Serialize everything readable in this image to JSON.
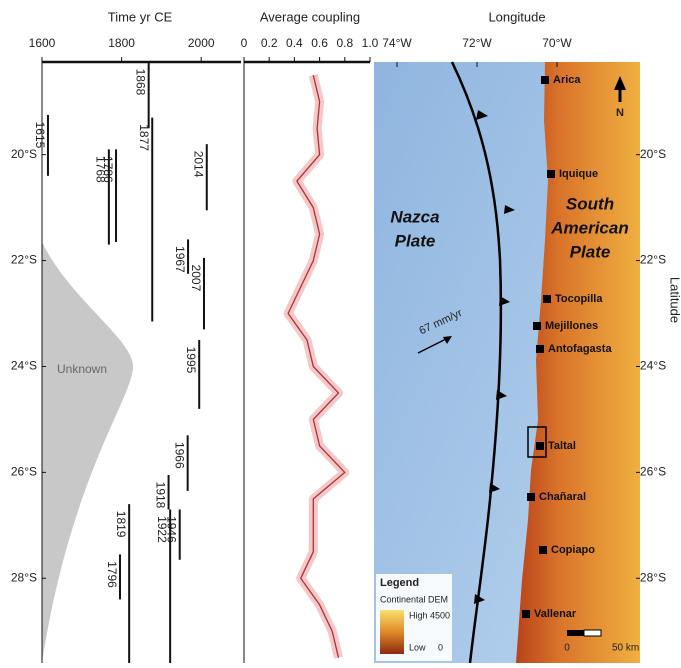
{
  "chart_data": [
    {
      "type": "range",
      "title": "Time yr CE",
      "xlim": [
        1600,
        2100
      ],
      "xticks": [
        1600,
        1800,
        2000
      ],
      "ylim": [
        18.25,
        29.6
      ],
      "yticks": [
        {
          "value": 20,
          "label": "20°S"
        },
        {
          "value": 22,
          "label": "22°S"
        },
        {
          "value": 24,
          "label": "24°S"
        },
        {
          "value": 26,
          "label": "26°S"
        },
        {
          "value": 28,
          "label": "28°S"
        }
      ],
      "annotation": "Unknown",
      "ruptures": [
        {
          "year": 1868,
          "lat": [
            18.25,
            19.5
          ]
        },
        {
          "year": 1615,
          "lat": [
            19.25,
            20.4
          ]
        },
        {
          "year": 1768,
          "lat": [
            19.9,
            21.7
          ]
        },
        {
          "year": 1786,
          "lat": [
            19.9,
            21.65
          ]
        },
        {
          "year": 1877,
          "lat": [
            19.3,
            23.15
          ]
        },
        {
          "year": 2014,
          "lat": [
            19.8,
            21.05
          ]
        },
        {
          "year": 1967,
          "lat": [
            21.6,
            22.25
          ]
        },
        {
          "year": 2007,
          "lat": [
            21.95,
            23.3
          ]
        },
        {
          "year": 1995,
          "lat": [
            23.5,
            24.8
          ]
        },
        {
          "year": 1966,
          "lat": [
            25.3,
            26.35
          ]
        },
        {
          "year": 1918,
          "lat": [
            26.05,
            26.7
          ]
        },
        {
          "year": 1946,
          "lat": [
            26.7,
            27.65
          ]
        },
        {
          "year": 1796,
          "lat": [
            27.55,
            28.4
          ]
        },
        {
          "year": 1819,
          "lat": [
            26.6,
            29.6
          ]
        },
        {
          "year": 1922,
          "lat": [
            26.7,
            29.6
          ]
        }
      ]
    },
    {
      "type": "line",
      "title": "Average coupling",
      "color": "#b03030",
      "xlim": [
        0,
        1
      ],
      "xticks": [
        0,
        0.2,
        0.4,
        0.6,
        0.8,
        {
          "value": 1,
          "label": "1.0"
        }
      ],
      "ylim": [
        18.25,
        29.6
      ],
      "latitude": [
        18.5,
        19,
        19.5,
        20,
        20.5,
        21,
        21.5,
        22,
        22.5,
        23,
        23.5,
        24,
        24.5,
        25,
        25.5,
        26,
        26.5,
        27,
        27.5,
        28,
        28.5,
        29,
        29.5
      ],
      "values": [
        0.55,
        0.6,
        0.58,
        0.6,
        0.42,
        0.55,
        0.6,
        0.55,
        0.45,
        0.35,
        0.5,
        0.55,
        0.75,
        0.55,
        0.6,
        0.8,
        0.55,
        0.55,
        0.55,
        0.45,
        0.6,
        0.7,
        0.75
      ]
    }
  ],
  "map": {
    "title": "Longitude",
    "ylabel": "Latitude",
    "xticks": [
      {
        "value": -74,
        "label": "74°W"
      },
      {
        "value": -72,
        "label": "72°W"
      },
      {
        "value": -70,
        "label": "70°W"
      }
    ],
    "yticks": [
      {
        "value": 20,
        "label": "20°S"
      },
      {
        "value": 22,
        "label": "22°S"
      },
      {
        "value": 24,
        "label": "24°S"
      },
      {
        "value": 26,
        "label": "26°S"
      },
      {
        "value": 28,
        "label": "28°S"
      }
    ],
    "plates": [
      [
        "Nazca",
        "Plate"
      ],
      [
        "South",
        "American",
        "Plate"
      ]
    ],
    "cities": [
      "Arica",
      "Iquique",
      "Tocopilla",
      "Mejillones",
      "Antofagasta",
      "Taltal",
      "Chañaral",
      "Copiapo",
      "Vallenar"
    ],
    "velocity": "67 mm/yr",
    "north": "N",
    "legend": {
      "title": "Legend",
      "subtitle": "Continental DEM",
      "high": "High",
      "high_value": 4500,
      "low": "Low",
      "low_value": 0
    },
    "scale": {
      "zero": 0,
      "label": "50 km"
    }
  }
}
